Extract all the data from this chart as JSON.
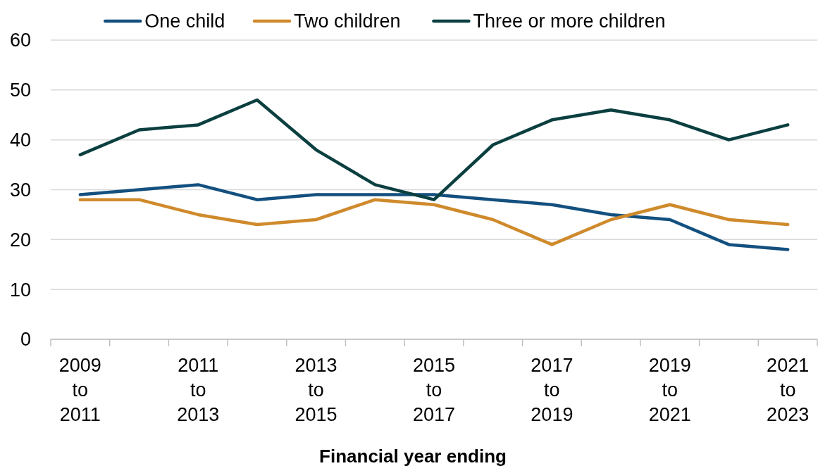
{
  "chart_data": {
    "type": "line",
    "xlabel": "Financial year ending",
    "categories": [
      "2009 to 2011",
      null,
      "2011 to 2013",
      null,
      "2013 to 2015",
      null,
      "2015 to 2017",
      null,
      "2017 to 2019",
      null,
      "2019 to 2021",
      null,
      "2021 to 2023"
    ],
    "series": [
      {
        "name": "One child",
        "color": "#13507f",
        "values": [
          29,
          30,
          31,
          28,
          29,
          29,
          29,
          28,
          27,
          25,
          24,
          19,
          18
        ]
      },
      {
        "name": "Two children",
        "color": "#cf8a2c",
        "values": [
          28,
          28,
          25,
          23,
          24,
          28,
          27,
          24,
          19,
          24,
          27,
          24,
          23
        ]
      },
      {
        "name": "Three or more children",
        "color": "#0b3f40",
        "values": [
          37,
          42,
          43,
          48,
          38,
          31,
          28,
          39,
          44,
          46,
          44,
          40,
          43
        ]
      }
    ],
    "ylim": [
      0,
      60
    ],
    "yticks": [
      0,
      10,
      20,
      30,
      40,
      50,
      60
    ],
    "grid": "y",
    "legend": "top",
    "marker": "none",
    "line_style": "solid"
  }
}
